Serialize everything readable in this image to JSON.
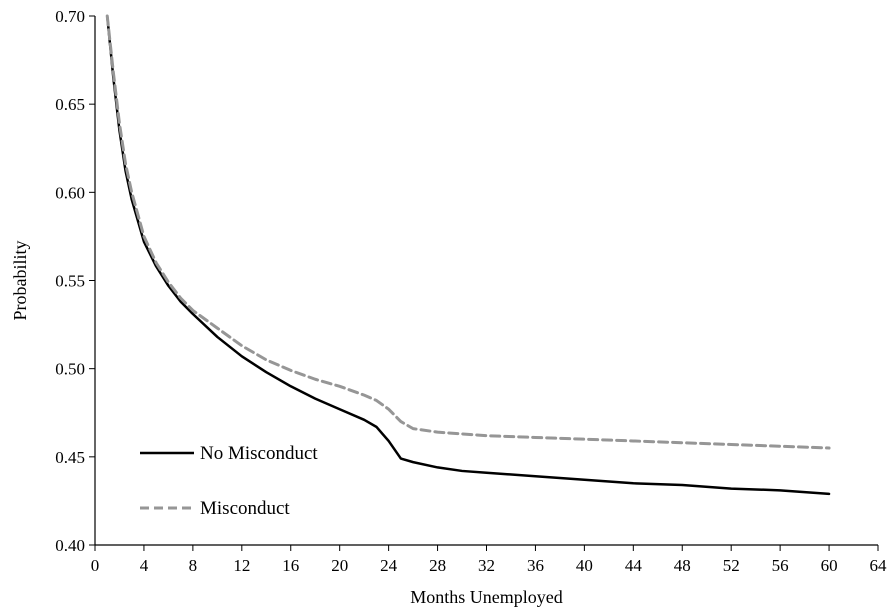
{
  "chart_data": {
    "type": "line",
    "title": "",
    "xlabel": "Months Unemployed",
    "ylabel": "Probability",
    "xlim": [
      0,
      64
    ],
    "ylim": [
      0.4,
      0.7
    ],
    "xticks": [
      0,
      4,
      8,
      12,
      16,
      20,
      24,
      28,
      32,
      36,
      40,
      44,
      48,
      52,
      56,
      60,
      64
    ],
    "yticks": [
      "0.40",
      "0.45",
      "0.50",
      "0.55",
      "0.60",
      "0.65",
      "0.70"
    ],
    "grid": false,
    "legend_position": "bottom-left",
    "series": [
      {
        "name": "No Misconduct",
        "color": "#000000",
        "dash": "solid",
        "x": [
          1,
          1.5,
          2,
          2.5,
          3,
          4,
          5,
          6,
          7,
          8,
          10,
          12,
          14,
          16,
          18,
          20,
          22,
          23,
          24,
          25,
          26,
          28,
          30,
          32,
          36,
          40,
          44,
          48,
          52,
          56,
          60
        ],
        "y": [
          0.7,
          0.665,
          0.635,
          0.612,
          0.596,
          0.572,
          0.558,
          0.547,
          0.538,
          0.531,
          0.518,
          0.507,
          0.498,
          0.49,
          0.483,
          0.477,
          0.471,
          0.467,
          0.459,
          0.449,
          0.447,
          0.444,
          0.442,
          0.441,
          0.439,
          0.437,
          0.435,
          0.434,
          0.432,
          0.431,
          0.429
        ]
      },
      {
        "name": "Misconduct",
        "color": "#969696",
        "dash": "dashed",
        "x": [
          1,
          1.5,
          2,
          2.5,
          3,
          4,
          5,
          6,
          7,
          8,
          10,
          12,
          14,
          16,
          18,
          20,
          22,
          23,
          24,
          25,
          26,
          28,
          30,
          32,
          36,
          40,
          44,
          48,
          52,
          56,
          60
        ],
        "y": [
          0.7,
          0.668,
          0.639,
          0.616,
          0.6,
          0.575,
          0.56,
          0.549,
          0.54,
          0.533,
          0.523,
          0.513,
          0.505,
          0.499,
          0.494,
          0.49,
          0.485,
          0.482,
          0.477,
          0.47,
          0.466,
          0.464,
          0.463,
          0.462,
          0.461,
          0.46,
          0.459,
          0.458,
          0.457,
          0.456,
          0.455
        ]
      }
    ]
  }
}
